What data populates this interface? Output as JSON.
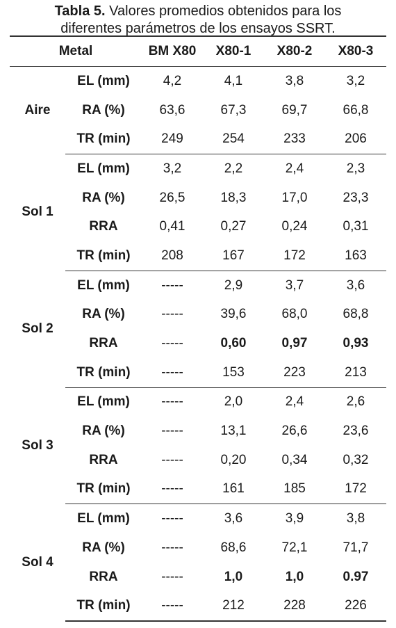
{
  "caption": {
    "label": "Tabla 5.",
    "line1": "Valores promedios obtenidos para los",
    "line2": "diferentes parámetros de los ensayos SSRT."
  },
  "table": {
    "headers": [
      "Metal",
      "BM X80",
      "X80-1",
      "X80-2",
      "X80-3"
    ],
    "groups": [
      {
        "name": "Aire",
        "rows": [
          {
            "param": "EL (mm)",
            "values": [
              "4,2",
              "4,1",
              "3,8",
              "3,2"
            ],
            "bold": [
              false,
              false,
              false,
              false
            ]
          },
          {
            "param": "RA (%)",
            "values": [
              "63,6",
              "67,3",
              "69,7",
              "66,8"
            ],
            "bold": [
              false,
              false,
              false,
              false
            ]
          },
          {
            "param": "TR (min)",
            "values": [
              "249",
              "254",
              "233",
              "206"
            ],
            "bold": [
              false,
              false,
              false,
              false
            ]
          }
        ]
      },
      {
        "name": "Sol 1",
        "rows": [
          {
            "param": "EL (mm)",
            "values": [
              "3,2",
              "2,2",
              "2,4",
              "2,3"
            ],
            "bold": [
              false,
              false,
              false,
              false
            ]
          },
          {
            "param": "RA (%)",
            "values": [
              "26,5",
              "18,3",
              "17,0",
              "23,3"
            ],
            "bold": [
              false,
              false,
              false,
              false
            ]
          },
          {
            "param": "RRA",
            "values": [
              "0,41",
              "0,27",
              "0,24",
              "0,31"
            ],
            "bold": [
              false,
              false,
              false,
              false
            ]
          },
          {
            "param": "TR (min)",
            "values": [
              "208",
              "167",
              "172",
              "163"
            ],
            "bold": [
              false,
              false,
              false,
              false
            ]
          }
        ]
      },
      {
        "name": "Sol 2",
        "rows": [
          {
            "param": "EL (mm)",
            "values": [
              "-----",
              "2,9",
              "3,7",
              "3,6"
            ],
            "bold": [
              false,
              false,
              false,
              false
            ]
          },
          {
            "param": "RA (%)",
            "values": [
              "-----",
              "39,6",
              "68,0",
              "68,8"
            ],
            "bold": [
              false,
              false,
              false,
              false
            ]
          },
          {
            "param": "RRA",
            "values": [
              "-----",
              "0,60",
              "0,97",
              "0,93"
            ],
            "bold": [
              false,
              true,
              true,
              true
            ]
          },
          {
            "param": "TR (min)",
            "values": [
              "-----",
              "153",
              "223",
              "213"
            ],
            "bold": [
              false,
              false,
              false,
              false
            ]
          }
        ]
      },
      {
        "name": "Sol 3",
        "rows": [
          {
            "param": "EL (mm)",
            "values": [
              "-----",
              "2,0",
              "2,4",
              "2,6"
            ],
            "bold": [
              false,
              false,
              false,
              false
            ]
          },
          {
            "param": "RA (%)",
            "values": [
              "-----",
              "13,1",
              "26,6",
              "23,6"
            ],
            "bold": [
              false,
              false,
              false,
              false
            ]
          },
          {
            "param": "RRA",
            "values": [
              "-----",
              "0,20",
              "0,34",
              "0,32"
            ],
            "bold": [
              false,
              false,
              false,
              false
            ]
          },
          {
            "param": "TR (min)",
            "values": [
              "-----",
              "161",
              "185",
              "172"
            ],
            "bold": [
              false,
              false,
              false,
              false
            ]
          }
        ]
      },
      {
        "name": "Sol 4",
        "rows": [
          {
            "param": "EL (mm)",
            "values": [
              "-----",
              "3,6",
              "3,9",
              "3,8"
            ],
            "bold": [
              false,
              false,
              false,
              false
            ]
          },
          {
            "param": "RA (%)",
            "values": [
              "-----",
              "68,6",
              "72,1",
              "71,7"
            ],
            "bold": [
              false,
              false,
              false,
              false
            ]
          },
          {
            "param": "RRA",
            "values": [
              "-----",
              "1,0",
              "1,0",
              "0.97"
            ],
            "bold": [
              false,
              true,
              true,
              true
            ]
          },
          {
            "param": "TR (min)",
            "values": [
              "-----",
              "212",
              "228",
              "226"
            ],
            "bold": [
              false,
              false,
              false,
              false
            ]
          }
        ]
      }
    ]
  }
}
